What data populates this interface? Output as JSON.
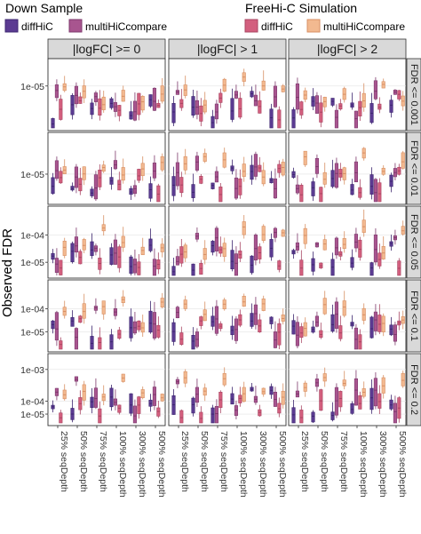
{
  "legends": {
    "left": {
      "title": "Down Sample",
      "items": [
        {
          "name": "diffHiC",
          "fill": "#5b3b92",
          "stroke": "#3e2770"
        },
        {
          "name": "multiHiCcompare",
          "fill": "#a8558f",
          "stroke": "#7e3a6d"
        }
      ]
    },
    "right": {
      "title": "FreeHi-C Simulation",
      "items": [
        {
          "name": "diffHiC",
          "fill": "#d35f7e",
          "stroke": "#a84562"
        },
        {
          "name": "multiHiCcompare",
          "fill": "#f2b990",
          "stroke": "#d88f63"
        }
      ]
    }
  },
  "chart_data": {
    "type": "box",
    "ylabel": "Observed FDR",
    "col_headers": [
      "|logFC| >= 0",
      "|logFC| > 1",
      "|logFC| > 2"
    ],
    "row_headers": [
      "FDR <= 0.001",
      "FDR <= 0.01",
      "FDR <= 0.05",
      "FDR <= 0.1",
      "FDR <= 0.2"
    ],
    "x_categories": [
      "25% seqDepth",
      "50% seqDepth",
      "75% seqDepth",
      "100% seqDepth",
      "300% seqDepth",
      "500% seqDepth"
    ],
    "y_ticks_per_row": [
      [
        {
          "label": "1e-05",
          "value": 1e-05
        }
      ],
      [
        {
          "label": "1e-05",
          "value": 1e-05
        }
      ],
      [
        {
          "label": "1e-04",
          "value": 0.0001
        },
        {
          "label": "1e-05",
          "value": 1e-05
        }
      ],
      [
        {
          "label": "1e-04",
          "value": 0.0001
        },
        {
          "label": "1e-05",
          "value": 1e-05
        }
      ],
      [
        {
          "label": "1e-03",
          "value": 0.001
        },
        {
          "label": "1e-04",
          "value": 0.0001
        },
        {
          "label": "1e-05",
          "value": 1e-05
        }
      ]
    ],
    "series_order": [
      "Down Sample diffHiC",
      "Down Sample multiHiCcompare",
      "FreeHi-C diffHiC",
      "FreeHi-C multiHiCcompare"
    ],
    "y_scale": "log",
    "grid": true
  }
}
